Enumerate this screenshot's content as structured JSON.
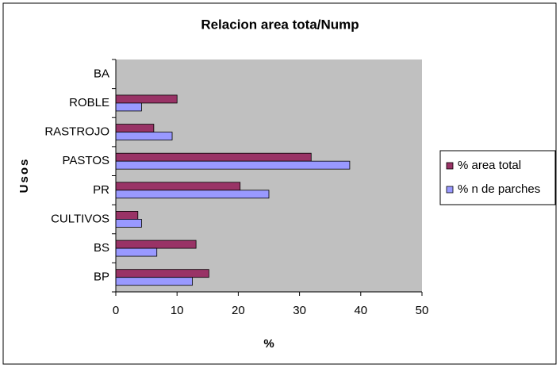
{
  "chart_data": {
    "type": "hbar",
    "title": "Relacion area tota/Nump",
    "xlabel": "%",
    "ylabel": "Usos",
    "categories": [
      "BP",
      "BS",
      "CULTIVOS",
      "PR",
      "PASTOS",
      "RASTROJO",
      "ROBLE",
      "BA"
    ],
    "series": [
      {
        "name": "% area total",
        "color": "#993366",
        "values": [
          15.2,
          13.1,
          3.6,
          20.3,
          31.9,
          6.2,
          10,
          0
        ]
      },
      {
        "name": "% n de parches",
        "color": "#9999ff",
        "values": [
          12.5,
          6.7,
          4.2,
          25,
          38.2,
          9.2,
          4.2,
          0
        ]
      }
    ],
    "xlim": [
      0,
      50
    ],
    "xticks": [
      0,
      10,
      20,
      30,
      40,
      50
    ],
    "legend": "right"
  }
}
